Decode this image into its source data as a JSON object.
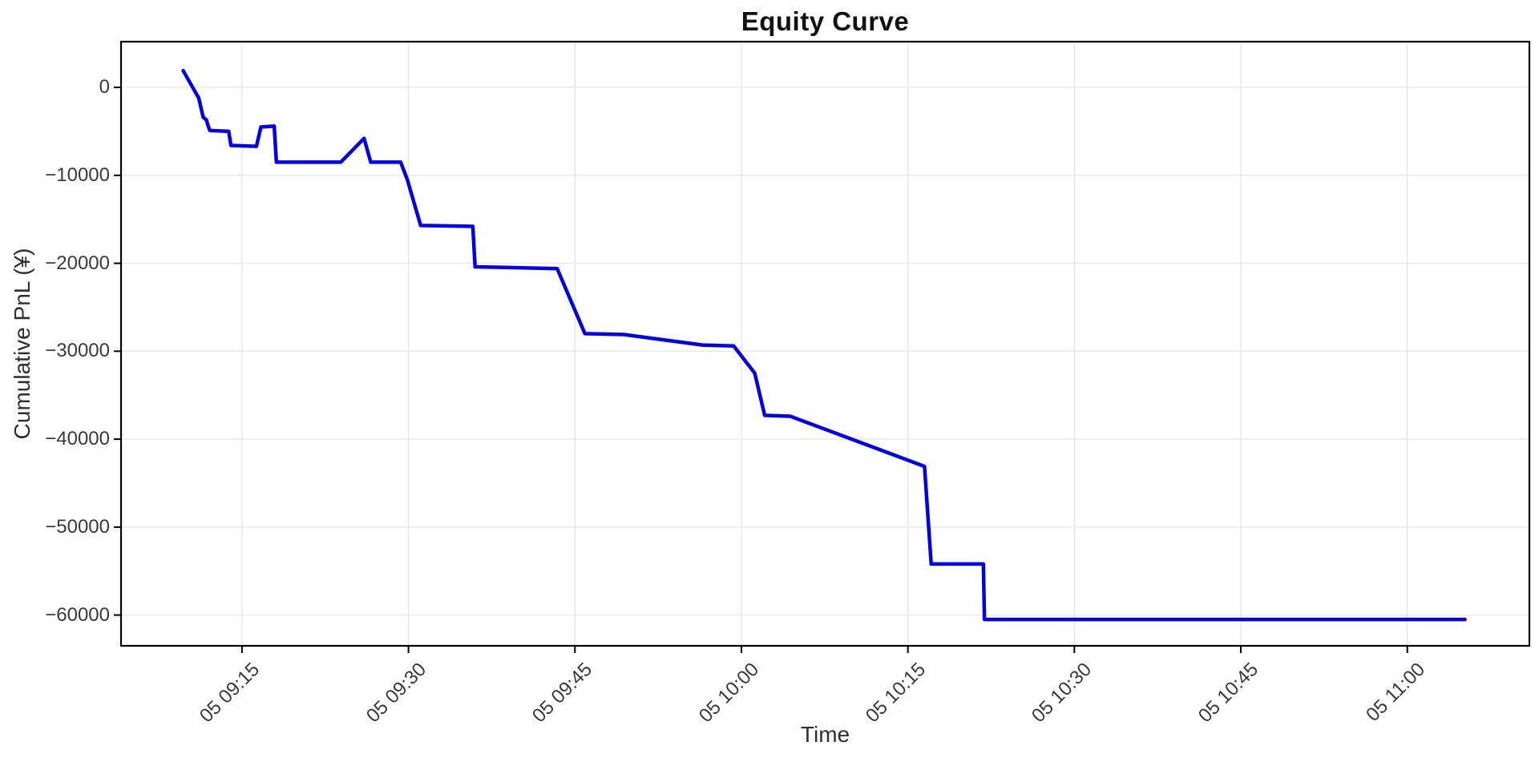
{
  "style": {
    "background": "#ffffff",
    "line_color": "#0000ee",
    "grid_color": "#e8e8e8",
    "axis_color": "#000000",
    "tick_text_color": "#3a3a3a",
    "title_color": "#111111",
    "axis_label_color": "#2f2f2f"
  },
  "chart_data": {
    "type": "line",
    "title": "Equity Curve",
    "xlabel": "Time",
    "ylabel": "Cumulative PnL (¥)",
    "grid": true,
    "legend": "none",
    "x_unit": "minutes after 05 09:00",
    "xlim": [
      4.1,
      131.0
    ],
    "ylim": [
      -63500,
      5200
    ],
    "x_ticks": [
      {
        "pos": 15,
        "label": "05 09:15"
      },
      {
        "pos": 30,
        "label": "05 09:30"
      },
      {
        "pos": 45,
        "label": "05 09:45"
      },
      {
        "pos": 60,
        "label": "05 10:00"
      },
      {
        "pos": 75,
        "label": "05 10:15"
      },
      {
        "pos": 90,
        "label": "05 10:30"
      },
      {
        "pos": 105,
        "label": "05 10:45"
      },
      {
        "pos": 120,
        "label": "05 11:00"
      }
    ],
    "y_ticks": [
      {
        "pos": 0,
        "label": "0"
      },
      {
        "pos": -10000,
        "label": "−10000"
      },
      {
        "pos": -20000,
        "label": "−20000"
      },
      {
        "pos": -30000,
        "label": "−30000"
      },
      {
        "pos": -40000,
        "label": "−40000"
      },
      {
        "pos": -50000,
        "label": "−50000"
      },
      {
        "pos": -60000,
        "label": "−60000"
      }
    ],
    "series": [
      {
        "name": "cumulative-pnl",
        "color": "#0000ee",
        "points": [
          [
            9.7,
            1900
          ],
          [
            10.6,
            -100
          ],
          [
            11.1,
            -1200
          ],
          [
            11.5,
            -3400
          ],
          [
            11.8,
            -3700
          ],
          [
            11.9,
            -4200
          ],
          [
            12.1,
            -4900
          ],
          [
            13.8,
            -5000
          ],
          [
            14.0,
            -6600
          ],
          [
            16.3,
            -6700
          ],
          [
            16.7,
            -4500
          ],
          [
            17.9,
            -4400
          ],
          [
            18.1,
            -8500
          ],
          [
            23.9,
            -8500
          ],
          [
            26.0,
            -5800
          ],
          [
            26.6,
            -8500
          ],
          [
            29.3,
            -8500
          ],
          [
            29.9,
            -10500
          ],
          [
            31.1,
            -15700
          ],
          [
            35.8,
            -15800
          ],
          [
            36.0,
            -20400
          ],
          [
            43.4,
            -20600
          ],
          [
            45.9,
            -28000
          ],
          [
            49.4,
            -28100
          ],
          [
            56.5,
            -29300
          ],
          [
            59.3,
            -29400
          ],
          [
            61.2,
            -32500
          ],
          [
            62.1,
            -37300
          ],
          [
            64.4,
            -37400
          ],
          [
            76.5,
            -43100
          ],
          [
            77.1,
            -54200
          ],
          [
            81.8,
            -54200
          ],
          [
            81.9,
            -60500
          ],
          [
            125.2,
            -60500
          ]
        ]
      }
    ]
  }
}
